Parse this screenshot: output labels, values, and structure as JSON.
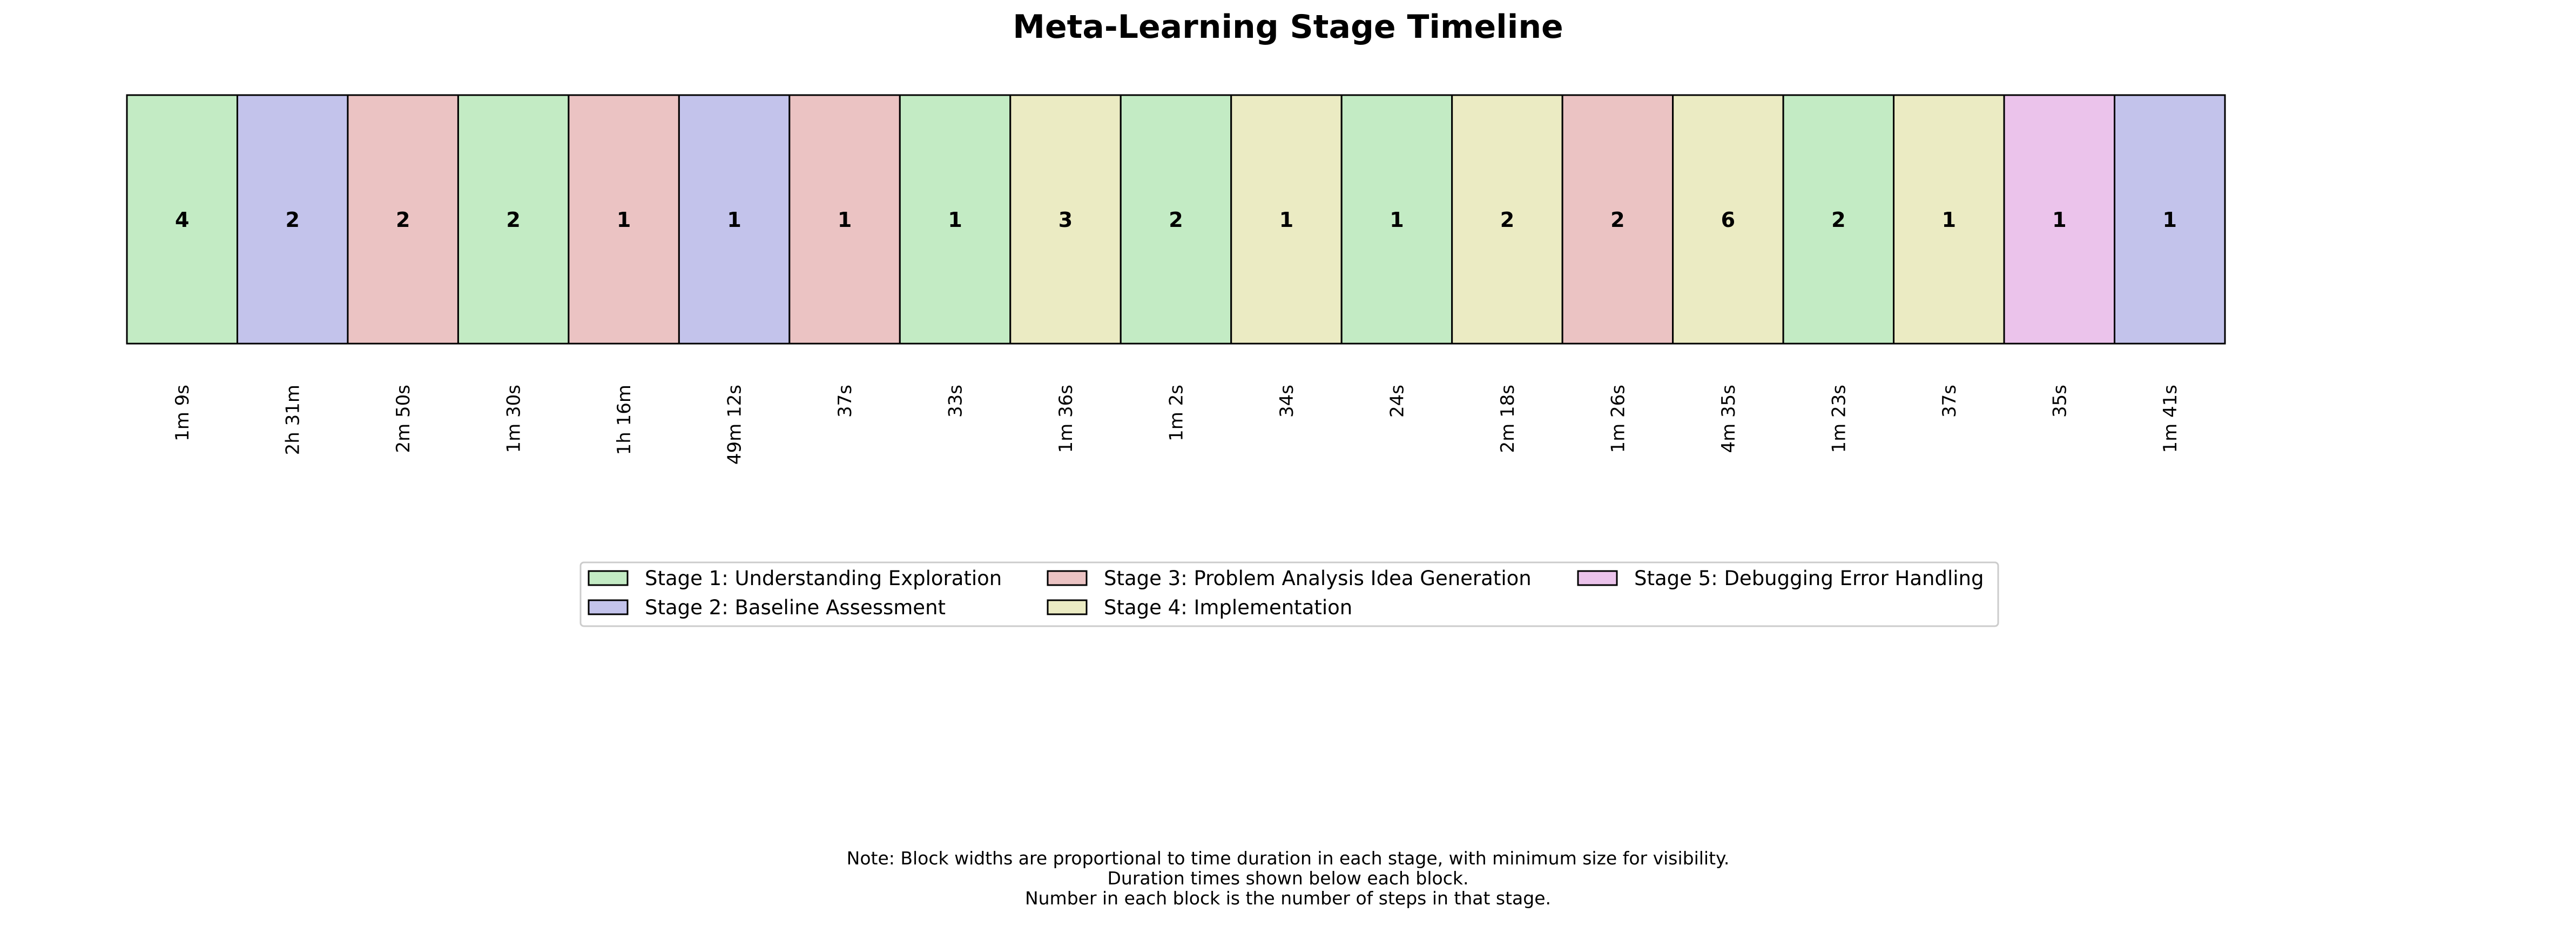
{
  "chart_data": {
    "type": "timeline",
    "title": "Meta-Learning Stage Timeline",
    "stage_colors": {
      "1": "#c3ebc4",
      "2": "#c3c3eb",
      "3": "#ebc3c3",
      "4": "#ebebc3",
      "5": "#ebc3eb"
    },
    "blocks": [
      {
        "stage": 1,
        "steps": 4,
        "duration": "1m 9s"
      },
      {
        "stage": 2,
        "steps": 2,
        "duration": "2h 31m"
      },
      {
        "stage": 3,
        "steps": 2,
        "duration": "2m 50s"
      },
      {
        "stage": 1,
        "steps": 2,
        "duration": "1m 30s"
      },
      {
        "stage": 3,
        "steps": 1,
        "duration": "1h 16m"
      },
      {
        "stage": 2,
        "steps": 1,
        "duration": "49m 12s"
      },
      {
        "stage": 3,
        "steps": 1,
        "duration": "37s"
      },
      {
        "stage": 1,
        "steps": 1,
        "duration": "33s"
      },
      {
        "stage": 4,
        "steps": 3,
        "duration": "1m 36s"
      },
      {
        "stage": 1,
        "steps": 2,
        "duration": "1m 2s"
      },
      {
        "stage": 4,
        "steps": 1,
        "duration": "34s"
      },
      {
        "stage": 1,
        "steps": 1,
        "duration": "24s"
      },
      {
        "stage": 4,
        "steps": 2,
        "duration": "2m 18s"
      },
      {
        "stage": 3,
        "steps": 2,
        "duration": "1m 26s"
      },
      {
        "stage": 4,
        "steps": 6,
        "duration": "4m 35s"
      },
      {
        "stage": 1,
        "steps": 2,
        "duration": "1m 23s"
      },
      {
        "stage": 4,
        "steps": 1,
        "duration": "37s"
      },
      {
        "stage": 5,
        "steps": 1,
        "duration": "35s"
      },
      {
        "stage": 2,
        "steps": 1,
        "duration": "1m 41s"
      }
    ],
    "legend": [
      {
        "stage": 1,
        "label": "Stage 1: Understanding Exploration"
      },
      {
        "stage": 2,
        "label": "Stage 2: Baseline Assessment"
      },
      {
        "stage": 3,
        "label": "Stage 3: Problem Analysis Idea Generation"
      },
      {
        "stage": 4,
        "label": "Stage 4: Implementation"
      },
      {
        "stage": 5,
        "label": "Stage 5: Debugging Error Handling"
      }
    ],
    "legend_placement": "below-center",
    "notes": [
      "Note: Block widths are proportional to time duration in each stage, with minimum size for visibility.",
      "Duration times shown below each block.",
      "Number in each block is the number of steps in that stage."
    ]
  }
}
